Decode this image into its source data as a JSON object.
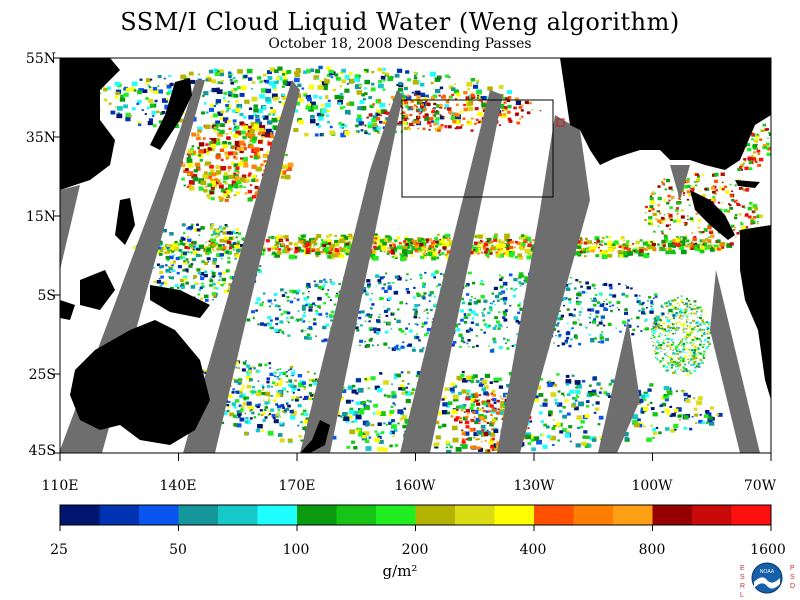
{
  "title": "SSM/I Cloud Liquid Water (Weng algorithm)",
  "subtitle": "October 18, 2008  Descending Passes",
  "lat_labels": [
    "55N",
    "35N",
    "15N",
    "5S",
    "25S",
    "45S"
  ],
  "lon_labels": [
    "110E",
    "140E",
    "170E",
    "160W",
    "130W",
    "100W",
    "70W"
  ],
  "colorbar": {
    "colors": [
      "#00166e",
      "#0033b4",
      "#0a55f0",
      "#14969a",
      "#16c8c8",
      "#20ffff",
      "#0a9a10",
      "#16c416",
      "#20ee20",
      "#b4b400",
      "#dcdc14",
      "#ffff00",
      "#ff5000",
      "#ff7d00",
      "#ffa014",
      "#960000",
      "#c80a0a",
      "#ff1010"
    ],
    "tick_labels": [
      "25",
      "50",
      "100",
      "200",
      "400",
      "800",
      "1600"
    ],
    "units": "g/m²"
  },
  "colors": {
    "land": "#000000",
    "gap": "#6e6e6e",
    "ocean": "#ffffff"
  },
  "logo": {
    "left_letters": "E S R L",
    "right_letters": "P S D",
    "emblem": "NOAA",
    "icon": "noaa-logo-icon"
  }
}
